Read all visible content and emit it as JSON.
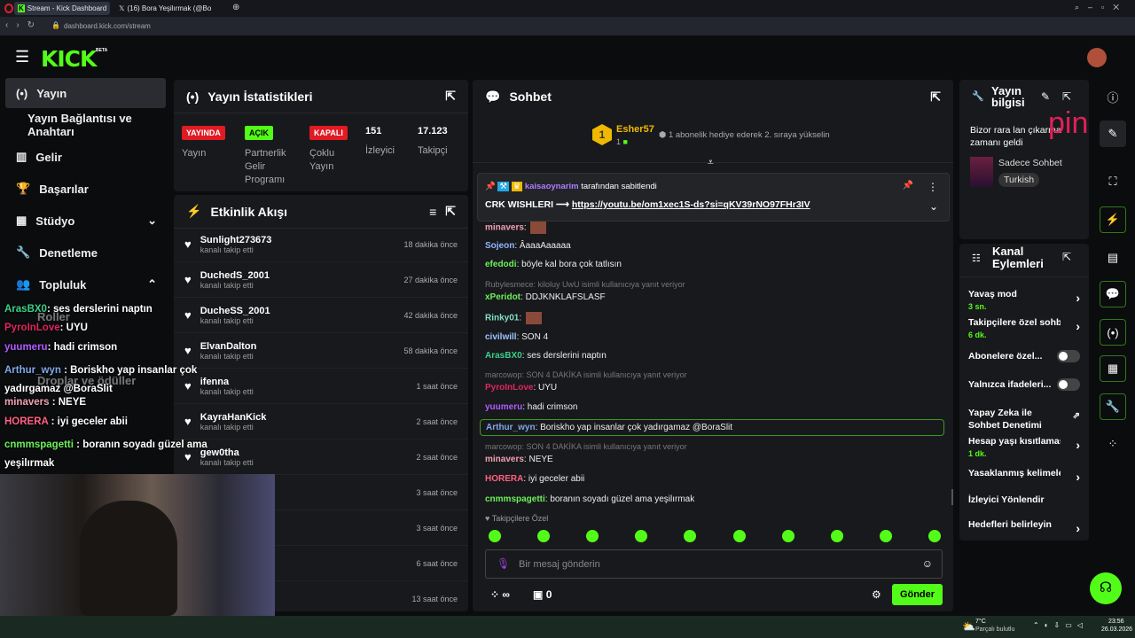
{
  "browser": {
    "tabs": [
      "Stream - Kick Dashboard",
      "(16) Bora Yeşilırmak (@Bo"
    ],
    "url": "dashboard.kick.com/stream"
  },
  "header": {
    "logo": "KICK",
    "beta": "BETA"
  },
  "sidebar": {
    "items": [
      {
        "label": "Yayın",
        "icon": "broadcast-icon"
      },
      {
        "label": "Yayın Bağlantısı ve Anahtarı"
      },
      {
        "label": "Gelir",
        "icon": "chart-icon"
      },
      {
        "label": "Başarılar",
        "icon": "trophy-icon"
      },
      {
        "label": "Stüdyo",
        "icon": "studio-icon"
      },
      {
        "label": "Denetleme",
        "icon": "wrench-icon"
      },
      {
        "label": "Topluluk",
        "icon": "community-icon"
      },
      {
        "label": "Roller"
      },
      {
        "label": "Droplar ve ödüller"
      }
    ]
  },
  "stats": {
    "title": "Yayın İstatistikleri",
    "items": [
      {
        "badge": "YAYINDA",
        "label": "Yayın",
        "color": "#e01b24"
      },
      {
        "badge": "AÇIK",
        "label": "Partnerlik Gelir Programı",
        "color": "#53fc18"
      },
      {
        "badge": "KAPALI",
        "label": "Çoklu Yayın",
        "color": "#e01b24"
      },
      {
        "value": "151",
        "label": "İzleyici"
      },
      {
        "value": "17.123",
        "label": "Takipçi"
      }
    ]
  },
  "activity": {
    "title": "Etkinlik Akışı",
    "items": [
      {
        "name": "Sunlight273673",
        "action": "kanalı takip etti",
        "time": "18 dakika önce"
      },
      {
        "name": "DuchedS_2001",
        "action": "kanalı takip etti",
        "time": "27 dakika önce"
      },
      {
        "name": "DucheSS_2001",
        "action": "kanalı takip etti",
        "time": "42 dakika önce"
      },
      {
        "name": "ElvanDalton",
        "action": "kanalı takip etti",
        "time": "58 dakika önce"
      },
      {
        "name": "ifenna",
        "action": "kanalı takip etti",
        "time": "1 saat önce"
      },
      {
        "name": "KayraHanKick",
        "action": "kanalı takip etti",
        "time": "2 saat önce"
      },
      {
        "name": "gew0tha",
        "action": "kanalı takip etti",
        "time": "2 saat önce"
      },
      {
        "time": "3 saat önce"
      },
      {
        "time": "3 saat önce"
      },
      {
        "time": "6 saat önce"
      },
      {
        "time": "13 saat önce"
      }
    ]
  },
  "chat": {
    "title": "Sohbet",
    "leader": {
      "rank": "1",
      "name": "Esher57",
      "count": "1",
      "hint": "1 abonelik hediye ederek 2. sıraya yükselin"
    },
    "pinned": {
      "by": "kaisaoynarim",
      "suffix": "tarafından sabitlendi",
      "text": "CRK WISHLERI ⟶",
      "link": "https://youtu.be/om1xec1S-ds?si=qKV39rNO97FHr3IV"
    },
    "messages": [
      {
        "user": "minavers",
        "text": "",
        "color": "#f0a0b0"
      },
      {
        "user": "Sojeon",
        "text": "ÂaaaAaaaaa",
        "color": "#8fb8ff"
      },
      {
        "user": "efedodi",
        "text": "böyle kal bora çok tatlısın",
        "color": "#6cf05a"
      },
      {
        "reply": "Rubylesmece: kiloluy UwU     isimli kullanıcıya yanıt veriyor"
      },
      {
        "user": "xPeridot",
        "text": "DDJKNKLAFSLASF",
        "color": "#6cf05a"
      },
      {
        "user": "Rinky01",
        "text": "",
        "color": "#80e0c0"
      },
      {
        "user": "civilwill",
        "text": "SON 4",
        "color": "#9fc3ff"
      },
      {
        "user": "ArasBX0",
        "text": "ses derslerini naptın",
        "color": "#3cd08a"
      },
      {
        "reply": "marcowop: SON 4 DAKİKA isimli kullanıcıya yanıt veriyor"
      },
      {
        "user": "PyroInLove",
        "text": "UYU",
        "color": "#e0245e"
      },
      {
        "user": "yuumeru",
        "text": "hadi crimson",
        "color": "#b05cff"
      },
      {
        "user": "Arthur_wyn",
        "text": "Boriskho yap insanlar çok yadırgamaz @BoraSlit",
        "color": "#7ea8e8",
        "highlight": true
      },
      {
        "reply": "marcowop: SON 4 DAKİKA isimli kullanıcıya yanıt veriyor"
      },
      {
        "user": "minavers",
        "text": "NEYE",
        "color": "#f0a0b0"
      },
      {
        "user": "HORERA",
        "text": "iyi geceler abii",
        "color": "#ff6080"
      },
      {
        "user": "cnmmspagetti",
        "text": "boranın soyadı güzel ama yeşilırmak",
        "color": "#6cf05a"
      }
    ],
    "emote_label": "Takipçilere Özel",
    "placeholder": "Bir mesaj gönderin",
    "points": "∞",
    "store": "0",
    "send": "Gönder"
  },
  "streaminfo": {
    "title": "Yayın bilgisi",
    "text": "Bizor rara lan çıkarma zamanı geldi",
    "category": "Sadece Sohbet",
    "language": "Turkish",
    "overlay": "pin"
  },
  "actions": {
    "title": "Kanal Eylemleri",
    "items": [
      {
        "label": "Yavaş mod",
        "sub": "3 sn.",
        "type": "chevron"
      },
      {
        "label": "Takipçilere özel sohb",
        "sub": "6 dk.",
        "type": "chevron"
      },
      {
        "label": "Abonelere özel...",
        "type": "toggle",
        "on": false
      },
      {
        "label": "Yalnızca ifadeleri...",
        "type": "toggle",
        "on": false
      },
      {
        "label": "Yapay Zeka ile Sohbet Denetimi",
        "type": "external"
      },
      {
        "label": "Hesap yaşı kısıtlaması",
        "sub": "1 dk.",
        "type": "chevron"
      },
      {
        "label": "Yasaklanmış kelimeler",
        "type": "chevron"
      },
      {
        "label": "İzleyici Yönlendir",
        "type": "none"
      },
      {
        "label": "Hedefleri belirleyin",
        "type": "chevron"
      }
    ]
  },
  "overlay_chat": [
    {
      "user": "ArasBX0",
      "text": ": ses derslerini naptın",
      "color": "#3cd08a"
    },
    {
      "user": "PyroInLove",
      "text": ": UYU",
      "color": "#e0245e"
    },
    {
      "user": "yuumeru",
      "text": ": hadi crimson",
      "color": "#b05cff"
    },
    {
      "user": "Arthur_wyn",
      "text": " : Boriskho yap insanlar çok yadırgamaz @BoraSlit",
      "color": "#7ea8e8"
    },
    {
      "user": "minavers",
      "text": " : NEYE",
      "color": "#f0a0b0"
    },
    {
      "user": "HORERA",
      "text": " : iyi geceler abii",
      "color": "#ff6080"
    },
    {
      "user": "cnmmspagetti",
      "text": " : boranın soyadı güzel ama yeşilırmak",
      "color": "#6cf05a"
    }
  ],
  "taskbar": {
    "temp": "7°C",
    "weather": "Parçalı bulutlu",
    "time": "23:56",
    "date": "26.03.2026"
  },
  "colors": {
    "accent": "#53fc18",
    "live": "#e01b24",
    "panel": "#18191c"
  }
}
